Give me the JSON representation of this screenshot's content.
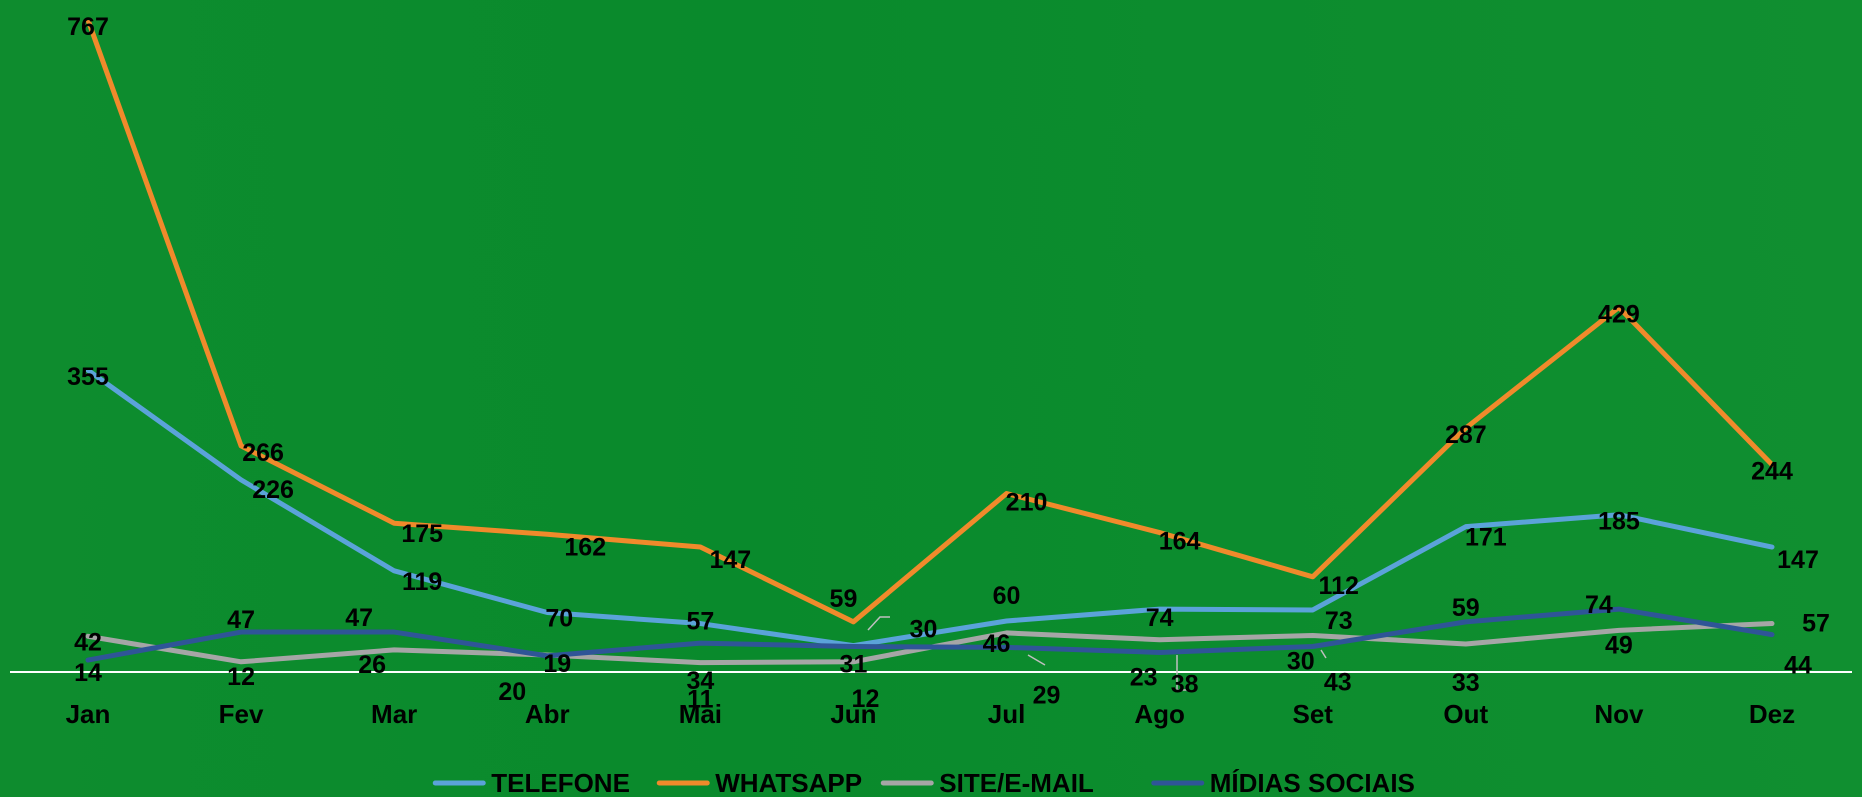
{
  "chart_data": {
    "type": "line",
    "title": "",
    "xlabel": "",
    "ylabel": "",
    "categories": [
      "Jan",
      "Fev",
      "Mar",
      "Abr",
      "Mai",
      "Jun",
      "Jul",
      "Ago",
      "Set",
      "Out",
      "Nov",
      "Dez"
    ],
    "ylim": [
      0,
      767
    ],
    "grid": false,
    "legend_position": "bottom",
    "series": [
      {
        "name": "TELEFONE",
        "color": "#5ba3d9",
        "values": [
          355,
          226,
          119,
          70,
          57,
          31,
          60,
          74,
          73,
          171,
          185,
          147
        ]
      },
      {
        "name": "WHATSAPP",
        "color": "#f08a2b",
        "values": [
          767,
          266,
          175,
          162,
          147,
          59,
          210,
          164,
          112,
          287,
          429,
          244
        ]
      },
      {
        "name": "SITE/E-MAIL",
        "color": "#a6a6a6",
        "values": [
          42,
          12,
          26,
          20,
          11,
          12,
          46,
          38,
          43,
          33,
          49,
          57
        ]
      },
      {
        "name": "MÍDIAS SOCIAIS",
        "color": "#2f5597",
        "values": [
          14,
          47,
          47,
          19,
          34,
          30,
          29,
          23,
          30,
          59,
          74,
          44
        ]
      }
    ]
  }
}
